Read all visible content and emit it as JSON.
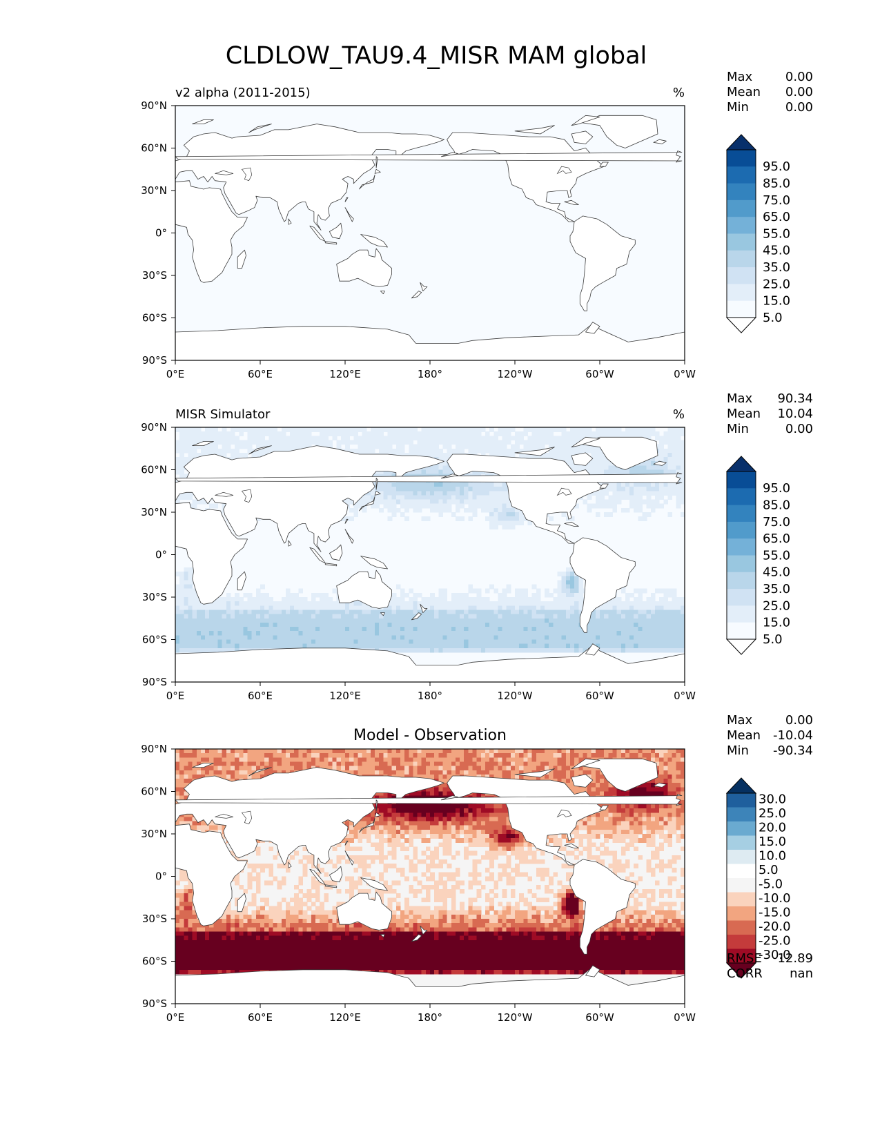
{
  "title": "CLDLOW_TAU9.4_MISR MAM global",
  "axes": {
    "lat_ticks": [
      "90°N",
      "60°N",
      "30°N",
      "0°",
      "30°S",
      "60°S",
      "90°S"
    ],
    "lon_ticks": [
      "0°E",
      "60°E",
      "120°E",
      "180°",
      "120°W",
      "60°W",
      "0°W"
    ]
  },
  "colors": {
    "blues": [
      "#f7fbff",
      "#e3eef9",
      "#d0e2f3",
      "#b9d6ea",
      "#99c7e0",
      "#74b1d8",
      "#519bcb",
      "#3383be",
      "#1c6bb0",
      "#084d96",
      "#08306b"
    ],
    "diff": [
      "#67001f",
      "#9e0b25",
      "#c43b3b",
      "#d86a52",
      "#f2a580",
      "#fad3bd",
      "#f5f5f5",
      "#deebf2",
      "#a6cfe3",
      "#6aaad0",
      "#3d84b9",
      "#1f5f9d",
      "#053061"
    ]
  },
  "panels": [
    {
      "left_title": "v2 alpha (2011-2015)",
      "right_title": "%",
      "center_title": "",
      "stats": [
        {
          "label": "Max",
          "value": "0.00"
        },
        {
          "label": "Mean",
          "value": "0.00"
        },
        {
          "label": "Min",
          "value": "0.00"
        }
      ],
      "colorbar_labels": [
        "95.0",
        "85.0",
        "75.0",
        "65.0",
        "55.0",
        "45.0",
        "35.0",
        "25.0",
        "15.0",
        "5.0"
      ],
      "field": "none"
    },
    {
      "left_title": "MISR Simulator",
      "right_title": "%",
      "center_title": "",
      "stats": [
        {
          "label": "Max",
          "value": "90.34"
        },
        {
          "label": "Mean",
          "value": "10.04"
        },
        {
          "label": "Min",
          "value": "0.00"
        }
      ],
      "colorbar_labels": [
        "95.0",
        "85.0",
        "75.0",
        "65.0",
        "55.0",
        "45.0",
        "35.0",
        "25.0",
        "15.0",
        "5.0"
      ],
      "field": "obs"
    },
    {
      "left_title": "",
      "right_title": "",
      "center_title": "Model - Observation",
      "stats": [
        {
          "label": "Max",
          "value": "0.00"
        },
        {
          "label": "Mean",
          "value": "-10.04"
        },
        {
          "label": "Min",
          "value": "-90.34"
        }
      ],
      "colorbar_labels": [
        "30.0",
        "25.0",
        "20.0",
        "15.0",
        "10.0",
        "5.0",
        "-5.0",
        "-10.0",
        "-15.0",
        "-20.0",
        "-25.0",
        "-30.0"
      ],
      "field": "diff",
      "bottom_stats": [
        {
          "label": "RMSE",
          "value": "12.89"
        },
        {
          "label": "CORR",
          "value": "nan"
        }
      ]
    }
  ]
}
